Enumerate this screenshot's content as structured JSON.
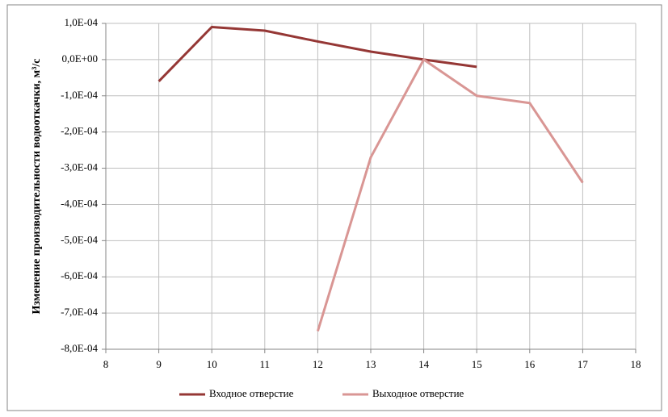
{
  "chart_data": {
    "type": "line",
    "y_label": "Изменение производительности водооткачки, м³/с",
    "series": [
      {
        "name": "Входное отверстие",
        "color": "#953735",
        "x": [
          9,
          10,
          11,
          12,
          13,
          14,
          15
        ],
        "values": [
          -6e-05,
          9e-05,
          8e-05,
          5e-05,
          2.2e-05,
          0,
          -2e-05
        ]
      },
      {
        "name": "Выходное отверстие",
        "color": "#d99694",
        "x": [
          12,
          13,
          14,
          15,
          16,
          17
        ],
        "values": [
          -0.00075,
          -0.00027,
          0,
          -0.0001,
          -0.00012,
          -0.00034
        ]
      }
    ],
    "xlim": [
      8,
      18
    ],
    "xticks": [
      8,
      9,
      10,
      11,
      12,
      13,
      14,
      15,
      16,
      17,
      18
    ],
    "ylim": [
      -0.0008,
      0.0001
    ],
    "yticks": [
      {
        "value": 0.0001,
        "label": "1,0E-04"
      },
      {
        "value": 0,
        "label": "0,0E+00"
      },
      {
        "value": -0.0001,
        "label": "-1,0E-04"
      },
      {
        "value": -0.0002,
        "label": "-2,0E-04"
      },
      {
        "value": -0.0003,
        "label": "-3,0E-04"
      },
      {
        "value": -0.0004,
        "label": "-4,0E-04"
      },
      {
        "value": -0.0005,
        "label": "-5,0E-04"
      },
      {
        "value": -0.0006,
        "label": "-6,0E-04"
      },
      {
        "value": -0.0007,
        "label": "-7,0E-04"
      },
      {
        "value": -0.0008,
        "label": "-8,0E-04"
      }
    ],
    "grid": true,
    "legend": "bottom"
  }
}
